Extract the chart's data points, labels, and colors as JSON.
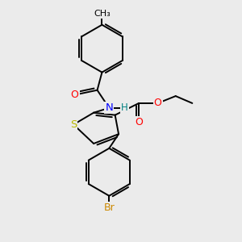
{
  "background_color": "#ebebeb",
  "atom_colors": {
    "S": "#b8b800",
    "N": "#0000ff",
    "O": "#ff0000",
    "Br": "#cc8800",
    "C": "#000000",
    "H": "#008080"
  },
  "bond_color": "#000000",
  "bond_width": 1.4,
  "font_size": 8.5,
  "figsize": [
    3.0,
    3.0
  ],
  "dpi": 100
}
